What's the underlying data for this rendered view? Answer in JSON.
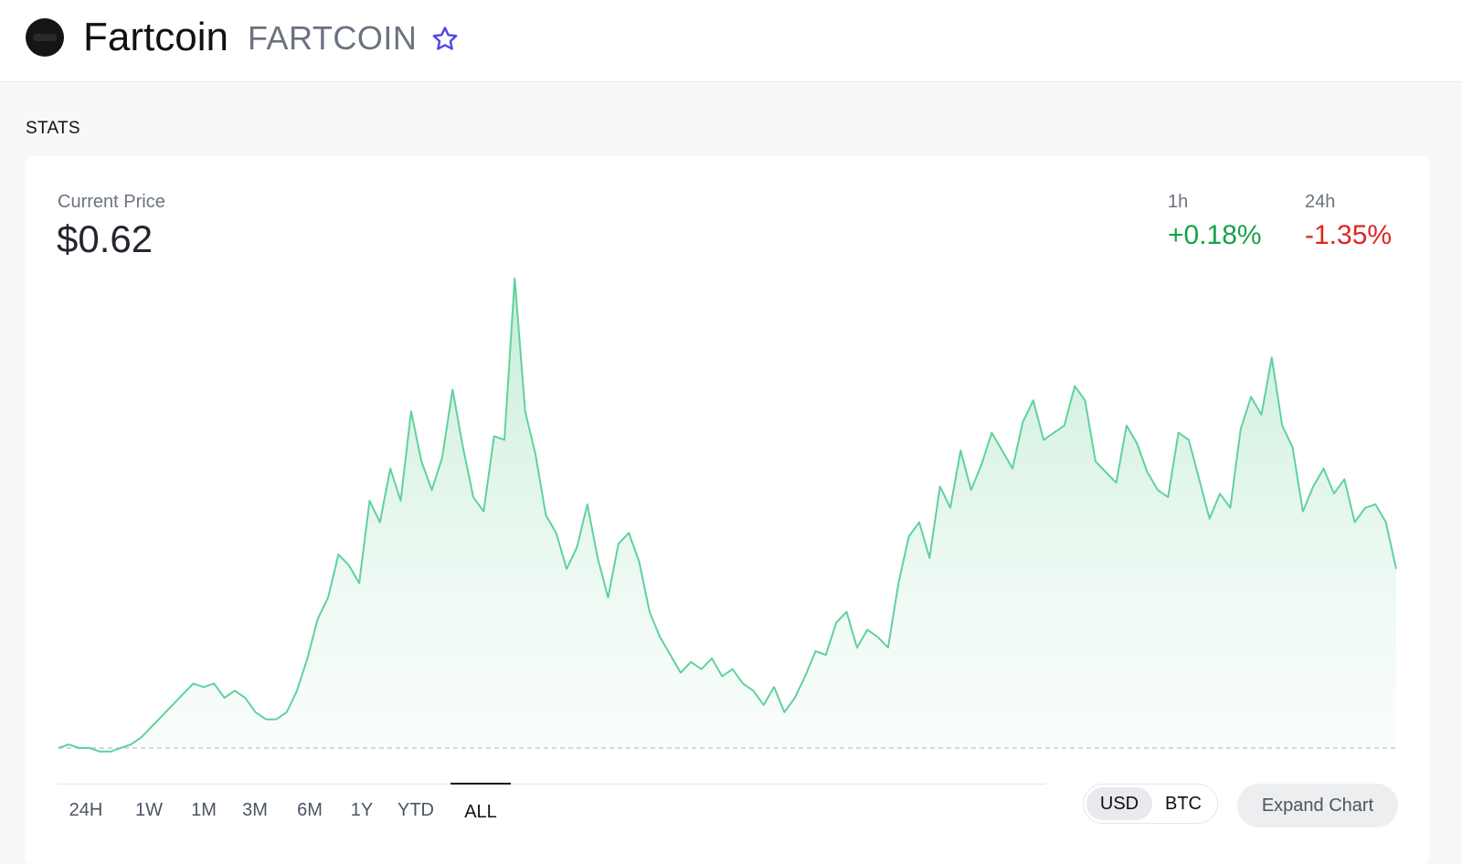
{
  "header": {
    "coin_name": "Fartcoin",
    "coin_symbol": "FARTCOIN",
    "logo_icon": "fartcoin-logo-icon",
    "favorite_icon": "star-outline-icon"
  },
  "stats": {
    "heading": "STATS",
    "current_price_label": "Current Price",
    "current_price": "$0.62",
    "changes": [
      {
        "label": "1h",
        "value": "+0.18%",
        "direction": "up"
      },
      {
        "label": "24h",
        "value": "-1.35%",
        "direction": "down"
      }
    ]
  },
  "range_tabs": [
    {
      "label": "24H",
      "active": false
    },
    {
      "label": "1W",
      "active": false
    },
    {
      "label": "1M",
      "active": false
    },
    {
      "label": "3M",
      "active": false
    },
    {
      "label": "6M",
      "active": false
    },
    {
      "label": "1Y",
      "active": false
    },
    {
      "label": "YTD",
      "active": false
    },
    {
      "label": "ALL",
      "active": true
    }
  ],
  "currency_toggle": {
    "options": [
      "USD",
      "BTC"
    ],
    "selected": "USD"
  },
  "expand_chart_label": "Expand Chart",
  "colors": {
    "positive": "#16a34a",
    "negative": "#dc2626",
    "line": "#5fd29d",
    "fill": "#d9f4e6",
    "baseline": "#c8ccd1",
    "star": "#4f46e5"
  },
  "chart_data": {
    "type": "area",
    "values": [
      0.0,
      0.01,
      0.0,
      0.0,
      -0.01,
      -0.01,
      0.0,
      0.01,
      0.03,
      0.06,
      0.09,
      0.12,
      0.15,
      0.18,
      0.17,
      0.18,
      0.14,
      0.16,
      0.14,
      0.1,
      0.08,
      0.08,
      0.1,
      0.16,
      0.25,
      0.36,
      0.42,
      0.54,
      0.51,
      0.46,
      0.69,
      0.63,
      0.78,
      0.69,
      0.94,
      0.8,
      0.72,
      0.81,
      1.0,
      0.84,
      0.7,
      0.66,
      0.87,
      0.86,
      1.31,
      0.94,
      0.82,
      0.65,
      0.6,
      0.5,
      0.56,
      0.68,
      0.53,
      0.42,
      0.57,
      0.6,
      0.52,
      0.38,
      0.31,
      0.26,
      0.21,
      0.24,
      0.22,
      0.25,
      0.2,
      0.22,
      0.18,
      0.16,
      0.12,
      0.17,
      0.1,
      0.14,
      0.2,
      0.27,
      0.26,
      0.35,
      0.38,
      0.28,
      0.33,
      0.31,
      0.28,
      0.46,
      0.59,
      0.63,
      0.53,
      0.73,
      0.67,
      0.83,
      0.72,
      0.79,
      0.88,
      0.83,
      0.78,
      0.91,
      0.97,
      0.86,
      0.88,
      0.9,
      1.01,
      0.97,
      0.8,
      0.77,
      0.74,
      0.9,
      0.85,
      0.77,
      0.72,
      0.7,
      0.88,
      0.86,
      0.75,
      0.64,
      0.71,
      0.67,
      0.89,
      0.98,
      0.93,
      1.09,
      0.9,
      0.84,
      0.66,
      0.73,
      0.78,
      0.71,
      0.75,
      0.63,
      0.67,
      0.68,
      0.63,
      0.5
    ]
  }
}
